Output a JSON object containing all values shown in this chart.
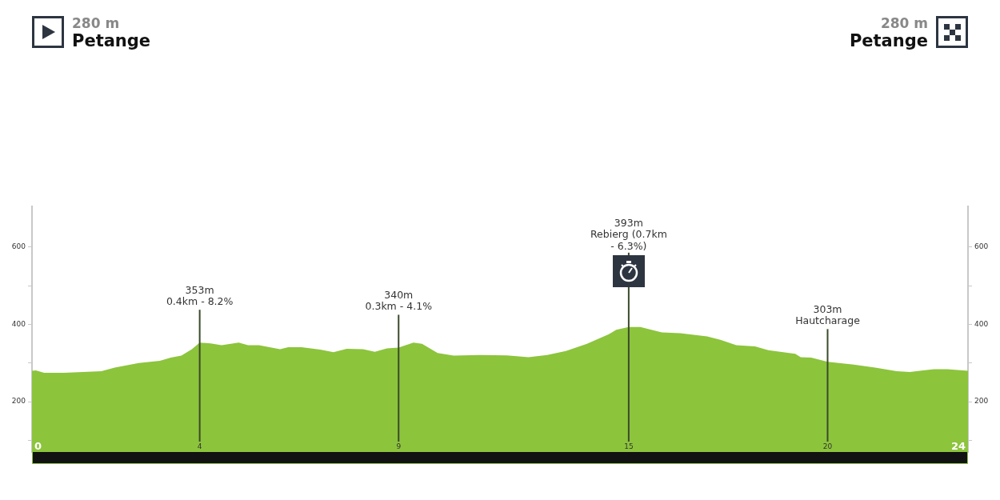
{
  "chart_data": {
    "type": "area",
    "color": "#8cc43c",
    "x": [
      0,
      0.1,
      0.31,
      0.82,
      1.78,
      2.12,
      2.74,
      3.28,
      3.56,
      3.83,
      4.1,
      4.3,
      4.58,
      4.86,
      5.3,
      5.54,
      5.82,
      6.36,
      6.57,
      6.91,
      7.39,
      7.73,
      8.07,
      8.49,
      8.79,
      9.1,
      9.4,
      9.78,
      10,
      10.4,
      10.81,
      11.5,
      12.18,
      12.73,
      13.21,
      13.69,
      14.23,
      14.78,
      14.98,
      15.3,
      15.6,
      15.8,
      16.15,
      16.62,
      17.31,
      17.65,
      18.06,
      18.54,
      18.88,
      19.57,
      19.71,
      19.98,
      20.4,
      21.07,
      21.62,
      22.17,
      22.51,
      22.85,
      23.13,
      23.47,
      24
    ],
    "values": [
      280,
      281,
      275,
      275,
      279,
      288,
      300,
      306,
      314,
      319,
      336,
      353,
      351,
      346,
      353,
      346,
      346,
      336,
      341,
      341,
      335,
      328,
      337,
      336,
      329,
      338,
      340,
      353,
      350,
      326,
      319,
      321,
      320,
      315,
      321,
      331,
      350,
      374,
      386,
      393,
      393,
      388,
      379,
      377,
      369,
      360,
      346,
      343,
      333,
      324,
      315,
      314,
      303,
      296,
      288,
      279,
      277,
      281,
      284,
      284,
      280
    ],
    "xlim": [
      0,
      24
    ],
    "xticks": [
      {
        "value": 4.3,
        "label": "4"
      },
      {
        "value": 9.4,
        "label": "9"
      },
      {
        "value": 15.3,
        "label": "15"
      },
      {
        "value": 20.4,
        "label": "20"
      }
    ],
    "ylim": [
      70,
      705
    ],
    "yticks": [
      {
        "value": 100,
        "label": null
      },
      200,
      {
        "value": 300,
        "label": null
      },
      400,
      {
        "value": 500,
        "label": null
      },
      600
    ],
    "y2lim": [
      70,
      705
    ],
    "y2ticks": [
      {
        "value": 100,
        "label": null
      },
      200,
      {
        "value": 300,
        "label": null
      },
      400,
      {
        "value": 500,
        "label": null
      },
      600
    ],
    "ref_lines": [
      {
        "axis": "x",
        "value": 4.3,
        "label": "353m\n0.4km - 8.2%",
        "color": "#3a4a2a"
      },
      {
        "axis": "x",
        "value": 9.4,
        "label": "340m\n0.3km - 4.1%",
        "color": "#3a4a2a"
      },
      {
        "axis": "x",
        "value": 15.3,
        "label": "393m\nRebierg (0.7km - 6.3%)",
        "color": "#3a4a2a"
      },
      {
        "axis": "x",
        "value": 20.4,
        "label": "303m\nHautcharage",
        "color": "#3a4a2a"
      }
    ],
    "annotations": [
      "280 m",
      "Petange",
      "280 m",
      "Petange",
      "0",
      "24"
    ]
  }
}
